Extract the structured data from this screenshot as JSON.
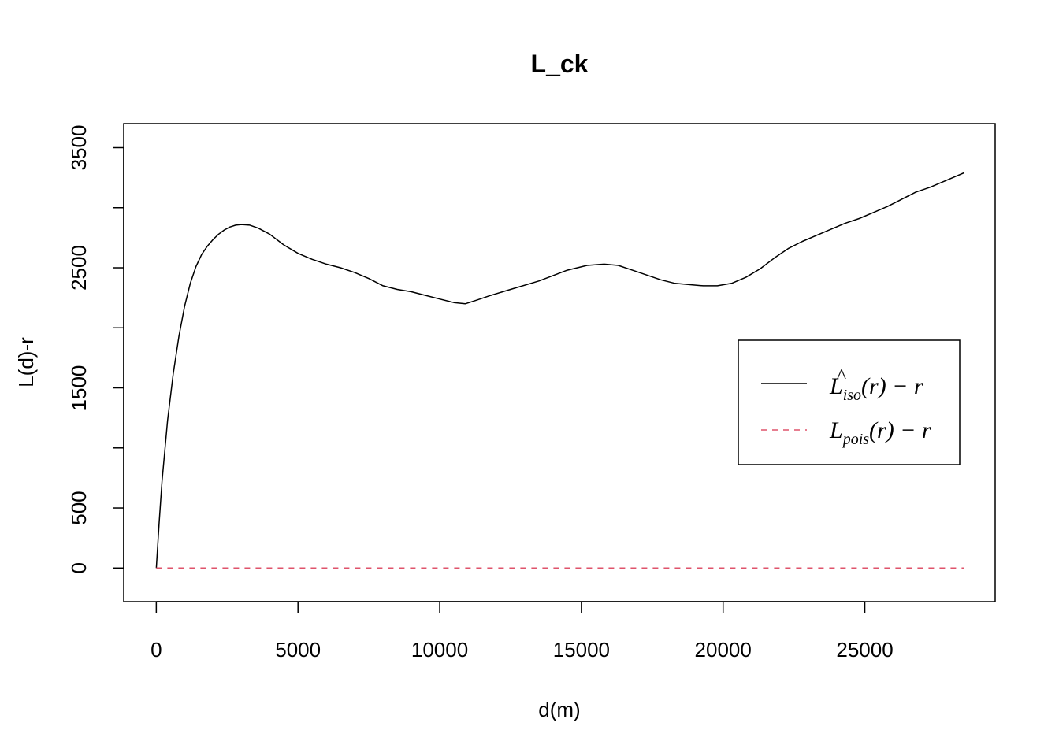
{
  "chart_data": {
    "type": "line",
    "title": "L_ck",
    "xlabel": "d(m)",
    "ylabel": "L(d)-r",
    "xlim": [
      -1150,
      29600
    ],
    "ylim": [
      -280,
      3700
    ],
    "x_ticks": [
      0,
      5000,
      10000,
      15000,
      20000,
      25000
    ],
    "y_ticks": [
      0,
      500,
      1500,
      2500,
      3500
    ],
    "y_minor_ticks": [
      0,
      500,
      1000,
      1500,
      2000,
      2500,
      3000,
      3500
    ],
    "grid": false,
    "legend_position": "right",
    "series": [
      {
        "name": "L̂iso(r) − r",
        "name_main": "L",
        "name_hat": "^",
        "name_sub": "iso",
        "name_tail": "(r) − r",
        "color": "#000000",
        "dash": "solid",
        "x": [
          0,
          100,
          200,
          400,
          600,
          800,
          1000,
          1200,
          1400,
          1600,
          1800,
          2000,
          2200,
          2400,
          2600,
          2800,
          3000,
          3300,
          3600,
          4000,
          4500,
          5000,
          5500,
          6000,
          6500,
          7000,
          7500,
          8000,
          8500,
          9000,
          9500,
          10000,
          10500,
          10900,
          11300,
          11800,
          12500,
          13500,
          14500,
          15200,
          15800,
          16300,
          16800,
          17300,
          17800,
          18300,
          18800,
          19300,
          19800,
          20300,
          20800,
          21300,
          21800,
          22300,
          22800,
          23300,
          23800,
          24300,
          24800,
          25300,
          25800,
          26300,
          26800,
          27300,
          27800,
          28300,
          28500
        ],
        "y": [
          0,
          380,
          720,
          1230,
          1620,
          1930,
          2180,
          2370,
          2510,
          2610,
          2680,
          2735,
          2780,
          2815,
          2840,
          2855,
          2860,
          2855,
          2830,
          2780,
          2690,
          2620,
          2570,
          2530,
          2500,
          2460,
          2410,
          2350,
          2320,
          2300,
          2270,
          2240,
          2210,
          2200,
          2230,
          2270,
          2320,
          2390,
          2480,
          2520,
          2530,
          2520,
          2480,
          2440,
          2400,
          2370,
          2360,
          2350,
          2350,
          2370,
          2420,
          2490,
          2580,
          2660,
          2720,
          2770,
          2820,
          2870,
          2910,
          2960,
          3010,
          3070,
          3130,
          3170,
          3220,
          3270,
          3290
        ]
      },
      {
        "name": "Lpois(r) − r",
        "name_main": "L",
        "name_sub": "pois",
        "name_tail": "(r) − r",
        "color": "#DF536B",
        "dash": "dashed",
        "x": [
          0,
          28500
        ],
        "y": [
          0,
          0
        ]
      }
    ]
  }
}
